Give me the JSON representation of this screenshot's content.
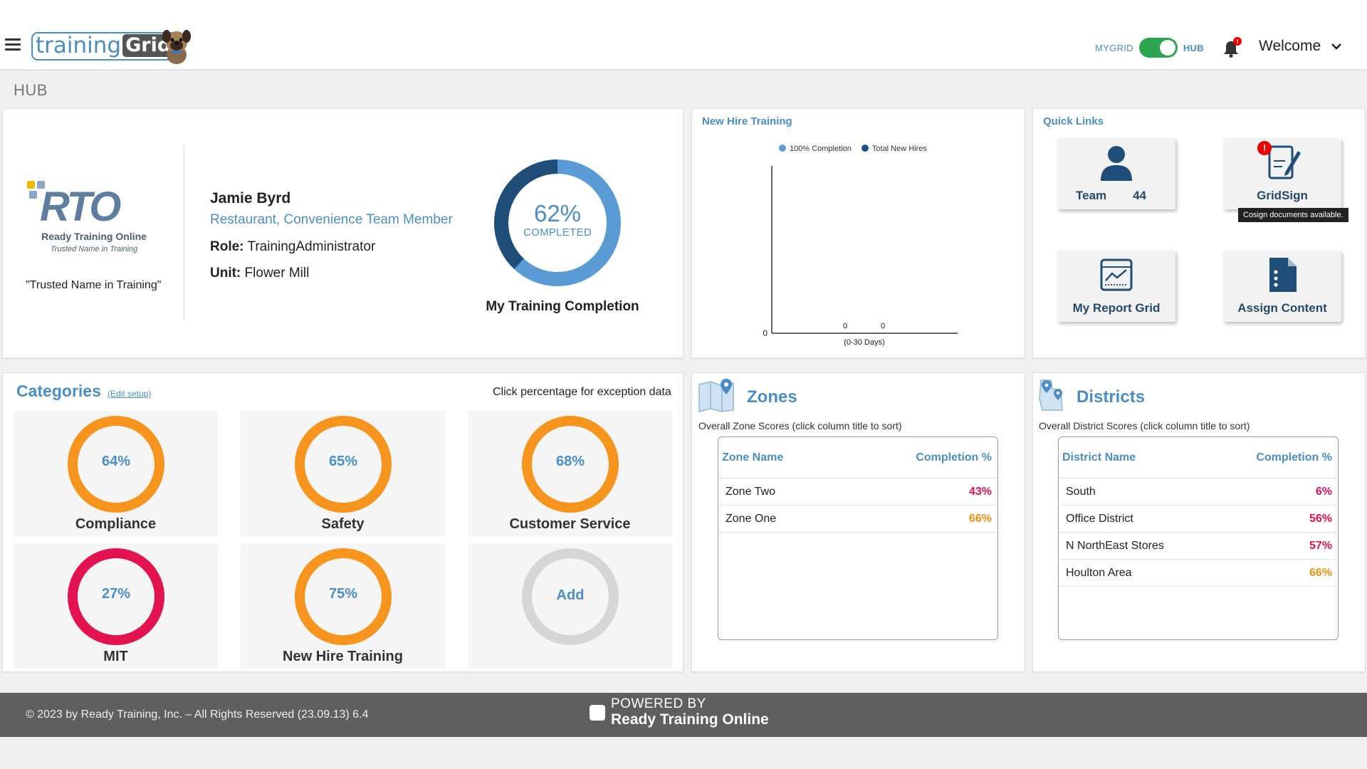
{
  "header": {
    "brand_text": "training",
    "brand_grid": "Grid",
    "toggle_left": "MYGRID",
    "toggle_right": "HUB",
    "bell_badge": "!",
    "welcome": "Welcome"
  },
  "page_title": "HUB",
  "profile": {
    "org_tagline": "\"Trusted Name in Training\"",
    "logo_text_main": "Ready Training Online",
    "logo_text_sub": "Trusted Name in Training",
    "name": "Jamie Byrd",
    "job": "Restaurant, Convenience Team Member",
    "role_label": "Role:",
    "role_value": "TrainingAdministrator",
    "unit_label": "Unit:",
    "unit_value": "Flower Mill",
    "completion_pct": "62%",
    "completion_value": 62,
    "completion_word": "COMPLETED",
    "completion_title": "My Training Completion"
  },
  "new_hire": {
    "title": "New Hire Training",
    "legend": [
      {
        "label": "100% Completion",
        "color": "#5b9bd5"
      },
      {
        "label": "Total New Hires",
        "color": "#1f4e79"
      }
    ]
  },
  "chart_data": {
    "type": "bar",
    "title": "New Hire Training",
    "categories": [
      "(0-30 Days)"
    ],
    "series": [
      {
        "name": "100% Completion",
        "values": [
          0
        ]
      },
      {
        "name": "Total New Hires",
        "values": [
          0
        ]
      }
    ],
    "y_tick": "0",
    "value_labels": [
      "0",
      "0"
    ],
    "legend_position": "top"
  },
  "quick_links": {
    "title": "Quick Links",
    "team_label": "Team",
    "team_count": "44",
    "gridsign_label": "GridSign",
    "gridsign_badge": "!",
    "gridsign_tooltip": "Cosign documents available.",
    "report_label": "My Report Grid",
    "assign_label": "Assign Content"
  },
  "categories": {
    "title": "Categories",
    "edit_link": "(Edit setup)",
    "hint": "Click percentage for exception data",
    "items": [
      {
        "name": "Compliance",
        "pct": "64%",
        "color": "#f7941d"
      },
      {
        "name": "Safety",
        "pct": "65%",
        "color": "#f7941d"
      },
      {
        "name": "Customer Service",
        "pct": "68%",
        "color": "#f7941d"
      },
      {
        "name": "MIT",
        "pct": "27%",
        "color": "#e2134f"
      },
      {
        "name": "New Hire Training",
        "pct": "75%",
        "color": "#f7941d"
      },
      {
        "name": "",
        "pct": "Add",
        "color": "#d6d6d6"
      }
    ]
  },
  "zones": {
    "title": "Zones",
    "subtitle": "Overall Zone Scores (click column title to sort)",
    "col_name": "Zone Name",
    "col_pct": "Completion %",
    "rows": [
      {
        "name": "Zone Two",
        "pct": "43%",
        "color": "#e2134f"
      },
      {
        "name": "Zone One",
        "pct": "66%",
        "color": "#f0900c"
      }
    ]
  },
  "districts": {
    "title": "Districts",
    "subtitle": "Overall District Scores (click column title to sort)",
    "col_name": "District Name",
    "col_pct": "Completion %",
    "rows": [
      {
        "name": "South",
        "pct": "6%",
        "color": "#e2134f"
      },
      {
        "name": "Office District",
        "pct": "56%",
        "color": "#e2134f"
      },
      {
        "name": "N NorthEast Stores",
        "pct": "57%",
        "color": "#e2134f"
      },
      {
        "name": "Houlton Area",
        "pct": "66%",
        "color": "#f0900c"
      }
    ]
  },
  "footer": {
    "copyright": "© 2023 by Ready Training, Inc. – All Rights Reserved (23.09.13) 6.4",
    "powered_line1": "POWERED BY",
    "powered_line2": "Ready Training Online"
  }
}
